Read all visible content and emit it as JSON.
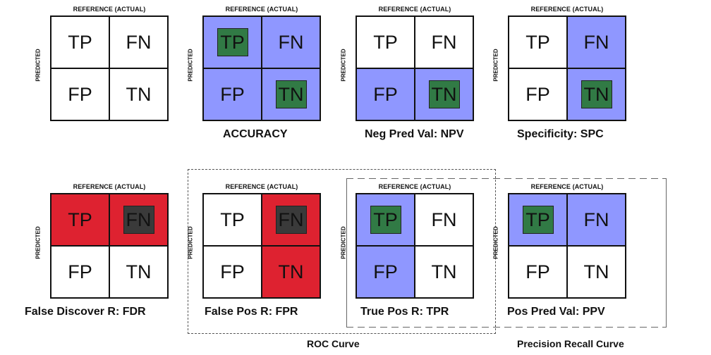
{
  "colors": {
    "white": "#ffffff",
    "blue": "#8f97ff",
    "green": "#317a45",
    "red": "#de2230",
    "dark": "#3a3a3a"
  },
  "axis": {
    "reference": "REFERENCE (ACTUAL)",
    "predicted": "PREDICTED"
  },
  "cell_labels": {
    "tp": "TP",
    "fn": "FN",
    "fp": "FP",
    "tn": "TN"
  },
  "panels": [
    {
      "id": "plain",
      "caption": "",
      "cells": {
        "tp": {
          "bg": "white",
          "chip": null
        },
        "fn": {
          "bg": "white",
          "chip": null
        },
        "fp": {
          "bg": "white",
          "chip": null
        },
        "tn": {
          "bg": "white",
          "chip": null
        }
      }
    },
    {
      "id": "accuracy",
      "caption": "ACCURACY",
      "cells": {
        "tp": {
          "bg": "blue",
          "chip": "green"
        },
        "fn": {
          "bg": "blue",
          "chip": null
        },
        "fp": {
          "bg": "blue",
          "chip": null
        },
        "tn": {
          "bg": "blue",
          "chip": "green"
        }
      }
    },
    {
      "id": "npv",
      "caption": "Neg Pred Val: NPV",
      "cells": {
        "tp": {
          "bg": "white",
          "chip": null
        },
        "fn": {
          "bg": "white",
          "chip": null
        },
        "fp": {
          "bg": "blue",
          "chip": null
        },
        "tn": {
          "bg": "blue",
          "chip": "green"
        }
      }
    },
    {
      "id": "spc",
      "caption": "Specificity: SPC",
      "cells": {
        "tp": {
          "bg": "white",
          "chip": null
        },
        "fn": {
          "bg": "blue",
          "chip": null
        },
        "fp": {
          "bg": "white",
          "chip": null
        },
        "tn": {
          "bg": "blue",
          "chip": "green"
        }
      }
    },
    {
      "id": "fdr",
      "caption": "False Discover R: FDR",
      "cells": {
        "tp": {
          "bg": "red",
          "chip": null
        },
        "fn": {
          "bg": "red",
          "chip": "dark"
        },
        "fp": {
          "bg": "white",
          "chip": null
        },
        "tn": {
          "bg": "white",
          "chip": null
        }
      }
    },
    {
      "id": "fpr",
      "caption": "False Pos R: FPR",
      "cells": {
        "tp": {
          "bg": "white",
          "chip": null
        },
        "fn": {
          "bg": "red",
          "chip": "dark"
        },
        "fp": {
          "bg": "white",
          "chip": null
        },
        "tn": {
          "bg": "red",
          "chip": null
        }
      }
    },
    {
      "id": "tpr",
      "caption": "True Pos R: TPR",
      "cells": {
        "tp": {
          "bg": "blue",
          "chip": "green"
        },
        "fn": {
          "bg": "white",
          "chip": null
        },
        "fp": {
          "bg": "blue",
          "chip": null
        },
        "tn": {
          "bg": "white",
          "chip": null
        }
      }
    },
    {
      "id": "ppv",
      "caption": "Pos Pred Val: PPV",
      "cells": {
        "tp": {
          "bg": "blue",
          "chip": "green"
        },
        "fn": {
          "bg": "blue",
          "chip": null
        },
        "fp": {
          "bg": "white",
          "chip": null
        },
        "tn": {
          "bg": "white",
          "chip": null
        }
      }
    }
  ],
  "groups": [
    {
      "id": "roc",
      "label": "ROC Curve"
    },
    {
      "id": "pr",
      "label": "Precision Recall Curve"
    }
  ]
}
